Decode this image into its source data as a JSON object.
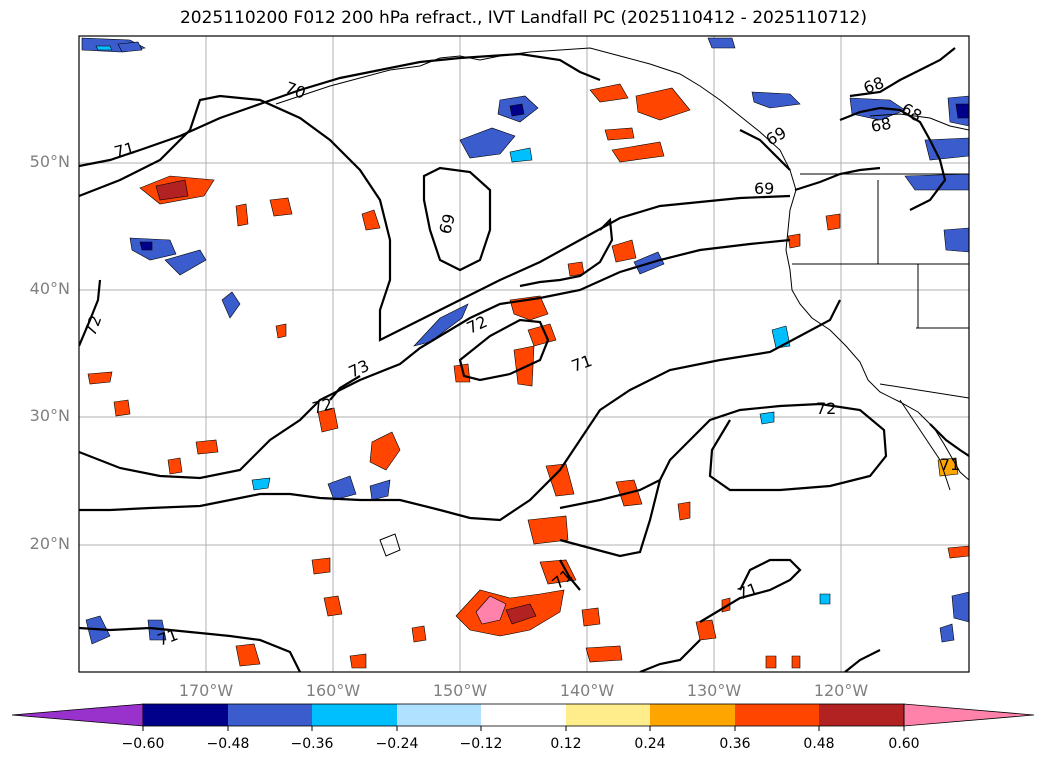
{
  "title": "2025110200 F012 200 hPa refract., IVT Landfall PC (2025110412 - 2025110712)",
  "map": {
    "lat_labels": [
      "50°N",
      "40°N",
      "30°N",
      "20°N"
    ],
    "lon_labels": [
      "170°W",
      "160°W",
      "150°W",
      "140°W",
      "130°W",
      "120°W"
    ],
    "contour_labels": [
      "70",
      "71",
      "69",
      "72",
      "73",
      "72",
      "71",
      "72",
      "69",
      "69",
      "68",
      "68",
      "68",
      "71",
      "72",
      "71",
      "71",
      "71"
    ]
  },
  "colorbar": {
    "tick_labels": [
      "−0.60",
      "−0.48",
      "−0.36",
      "−0.24",
      "−0.12",
      "0.12",
      "0.24",
      "0.36",
      "0.48",
      "0.60"
    ],
    "colors": [
      "#9932cc",
      "#00008b",
      "#3a5ccc",
      "#00bfff",
      "#b0e2ff",
      "#ffffff",
      "#ffec8b",
      "#ffa500",
      "#ff4500",
      "#b22222",
      "#ff82ab"
    ]
  }
}
